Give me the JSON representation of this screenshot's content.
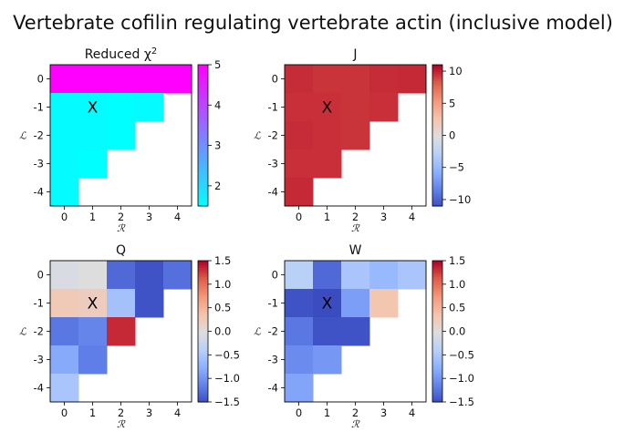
{
  "figure_title": "Vertebrate cofilin regulating vertebrate actin (inclusive model)",
  "chart_data": [
    {
      "type": "heatmap",
      "title": "Reduced χ²",
      "xlabel": "ℛ",
      "ylabel": "ℒ",
      "x_ticks": [
        "0",
        "1",
        "2",
        "3",
        "4"
      ],
      "y_ticks": [
        "0",
        "-1",
        "-2",
        "-3",
        "-4"
      ],
      "colormap": "cool",
      "vmin": 1.5,
      "vmax": 5,
      "colorbar_ticks": [
        "2",
        "3",
        "4",
        "5"
      ],
      "colorbar_tick_values": [
        2,
        3,
        4,
        5
      ],
      "marker": {
        "R": 1,
        "L": -1,
        "text": "X"
      },
      "cells": [
        [
          5,
          5,
          5,
          5,
          5
        ],
        [
          1.55,
          1.55,
          1.5,
          1.55,
          null
        ],
        [
          1.55,
          1.55,
          1.5,
          null,
          null
        ],
        [
          1.55,
          1.5,
          null,
          null,
          null
        ],
        [
          1.55,
          null,
          null,
          null,
          null
        ]
      ]
    },
    {
      "type": "heatmap",
      "title": "J",
      "xlabel": "ℛ",
      "ylabel": "ℒ",
      "x_ticks": [
        "0",
        "1",
        "2",
        "3",
        "4"
      ],
      "y_ticks": [
        "0",
        "-1",
        "-2",
        "-3",
        "-4"
      ],
      "colormap": "coolwarm",
      "vmin": -11,
      "vmax": 11,
      "colorbar_ticks": [
        "10",
        "5",
        "0",
        "−5",
        "−10"
      ],
      "colorbar_tick_values": [
        10,
        5,
        0,
        -5,
        -10
      ],
      "marker": {
        "R": 1,
        "L": -1,
        "text": "X"
      },
      "cells": [
        [
          9.8,
          9.6,
          9.6,
          9.8,
          9.9
        ],
        [
          9.7,
          9.7,
          9.6,
          9.7,
          null
        ],
        [
          9.8,
          9.7,
          9.6,
          null,
          null
        ],
        [
          9.7,
          9.7,
          null,
          null,
          null
        ],
        [
          9.9,
          null,
          null,
          null,
          null
        ]
      ]
    },
    {
      "type": "heatmap",
      "title": "Q",
      "xlabel": "ℛ",
      "ylabel": "ℒ",
      "x_ticks": [
        "0",
        "1",
        "2",
        "3",
        "4"
      ],
      "y_ticks": [
        "0",
        "-1",
        "-2",
        "-3",
        "-4"
      ],
      "colormap": "coolwarm",
      "vmin": -1.5,
      "vmax": 1.5,
      "colorbar_ticks": [
        "1.5",
        "1.0",
        "0.5",
        "0.0",
        "−0.5",
        "−1.0",
        "−1.5"
      ],
      "colorbar_tick_values": [
        1.5,
        1.0,
        0.5,
        0.0,
        -0.5,
        -1.0,
        -1.5
      ],
      "marker": {
        "R": 1,
        "L": -1,
        "text": "X"
      },
      "cells": [
        [
          -0.05,
          0.0,
          -1.3,
          -1.45,
          -1.25
        ],
        [
          0.3,
          0.25,
          -0.55,
          -1.45,
          null
        ],
        [
          -1.2,
          -1.1,
          1.35,
          null,
          null
        ],
        [
          -0.8,
          -1.15,
          null,
          null,
          null
        ],
        [
          -0.5,
          null,
          null,
          null,
          null
        ]
      ]
    },
    {
      "type": "heatmap",
      "title": "W",
      "xlabel": "ℛ",
      "ylabel": "ℒ",
      "x_ticks": [
        "0",
        "1",
        "2",
        "3",
        "4"
      ],
      "y_ticks": [
        "0",
        "-1",
        "-2",
        "-3",
        "-4"
      ],
      "colormap": "coolwarm",
      "vmin": -1.5,
      "vmax": 1.5,
      "colorbar_ticks": [
        "1.5",
        "1.0",
        "0.5",
        "0.0",
        "−0.5",
        "−1.0",
        "−1.5"
      ],
      "colorbar_tick_values": [
        1.5,
        1.0,
        0.5,
        0.0,
        -0.5,
        -1.0,
        -1.5
      ],
      "marker": {
        "R": 1,
        "L": -1,
        "text": "X"
      },
      "cells": [
        [
          -0.35,
          -1.3,
          -0.5,
          -0.65,
          -0.5
        ],
        [
          -1.45,
          -1.5,
          -0.9,
          0.35,
          null
        ],
        [
          -1.2,
          -1.45,
          -1.45,
          null,
          null
        ],
        [
          -1.05,
          -0.95,
          null,
          null,
          null
        ],
        [
          -0.85,
          null,
          null,
          null,
          null
        ]
      ]
    }
  ]
}
